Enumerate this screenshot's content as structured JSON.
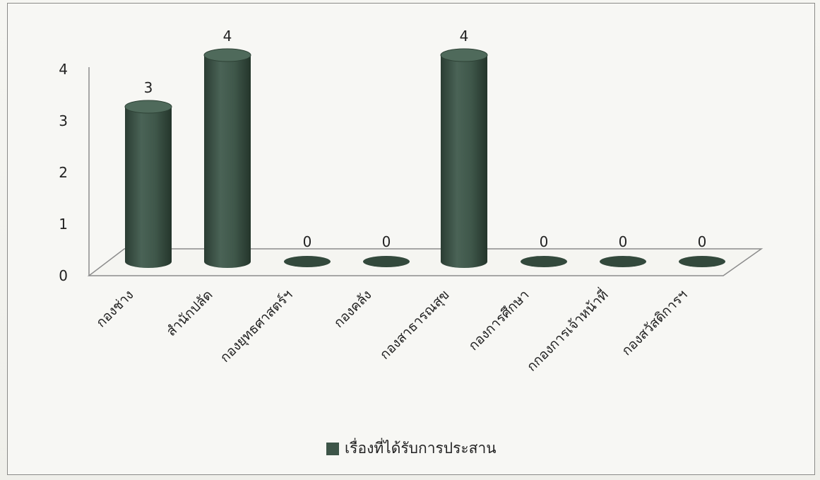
{
  "chart_data": {
    "type": "bar",
    "style": "3d-cylinder",
    "categories": [
      "กองช่าง",
      "สำนักปลัด",
      "กองยุทธศาสตร์ฯ",
      "กองคลัง",
      "กองสาธารณสุข",
      "กองการศึกษา",
      "กกองการเจ้าหน้าที่",
      "กองสวัสดิการฯ"
    ],
    "series": [
      {
        "name": "เรื่องที่ได้รับการประสาน",
        "values": [
          3,
          4,
          0,
          0,
          4,
          0,
          0,
          0
        ],
        "color": "#3d5548"
      }
    ],
    "data_labels": [
      "3",
      "4",
      "0",
      "0",
      "4",
      "0",
      "0",
      "0"
    ],
    "y_ticks": [
      "0",
      "1",
      "2",
      "3",
      "4"
    ],
    "ylim": [
      0,
      4
    ],
    "grid": false,
    "legend_position": "bottom",
    "title": "",
    "xlabel": "",
    "ylabel": ""
  }
}
